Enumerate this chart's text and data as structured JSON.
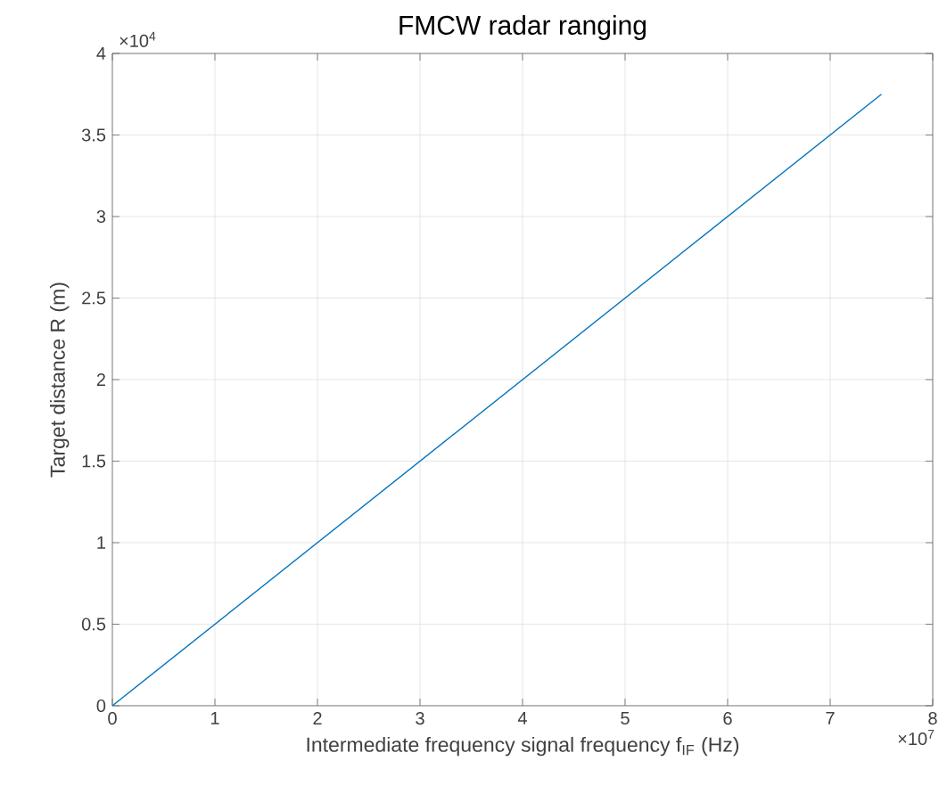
{
  "chart_data": {
    "type": "line",
    "title": "FMCW radar ranging",
    "xlabel": "Intermediate frequency signal frequency f$_{IF}$ (Hz)",
    "ylabel": "Target distance R (m)",
    "annotations": [
      "×10$^{4}$",
      "×10$^{7}$"
    ],
    "x": [
      0,
      7.5
    ],
    "series": [
      {
        "color": "#0072bd",
        "values": [
          0,
          3.75
        ]
      }
    ],
    "xlim": [
      0,
      8
    ],
    "ylim": [
      0,
      4
    ],
    "xticks": [
      0,
      1,
      2,
      3,
      4,
      5,
      6,
      7,
      8
    ],
    "yticks": [
      0,
      0.5,
      1,
      1.5,
      2,
      2.5,
      3,
      3.5,
      4
    ],
    "grid": true,
    "line_style": "solid",
    "marker": "none"
  }
}
